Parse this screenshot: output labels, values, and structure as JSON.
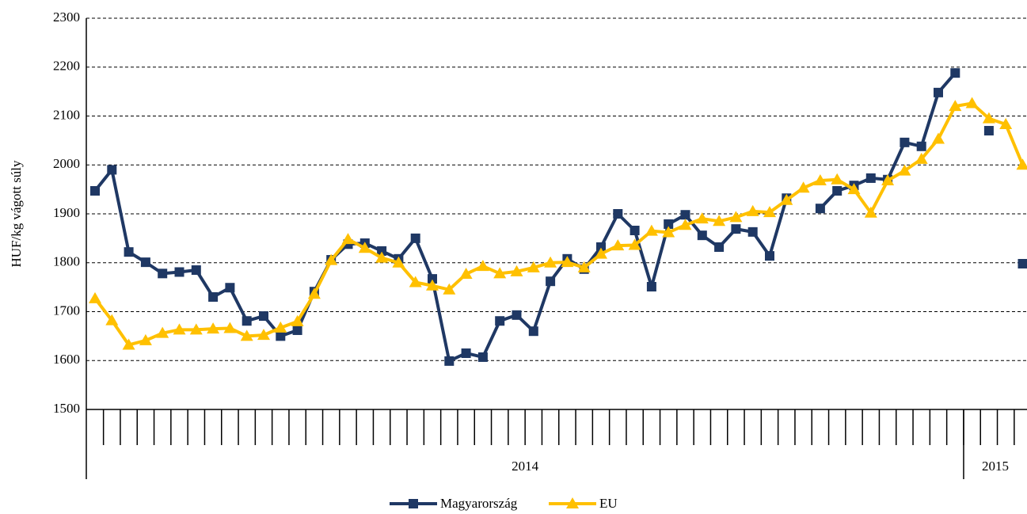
{
  "chart_data": {
    "type": "line",
    "y_label": "HUF/kg vágott súly",
    "categories": [
      null,
      null,
      null,
      null,
      null,
      null,
      null,
      null,
      null,
      null,
      null,
      null,
      null,
      null,
      null,
      null,
      null,
      null,
      null,
      null,
      null,
      null,
      null,
      null,
      null,
      null,
      null,
      null,
      null,
      null,
      null,
      null,
      null,
      null,
      null,
      null,
      null,
      null,
      null,
      null,
      null,
      null,
      null,
      null,
      null,
      null,
      null,
      null,
      null,
      null,
      null,
      null,
      null,
      null,
      null,
      null
    ],
    "category_groups": [
      {
        "label": "2014",
        "count": 52
      },
      {
        "label": "2015",
        "count": 4
      }
    ],
    "series": [
      {
        "name": "Magyarország",
        "color": "#1f3864",
        "marker": "square",
        "values": [
          1947,
          1990,
          1822,
          1801,
          1778,
          1781,
          1785,
          1730,
          1749,
          1681,
          1691,
          1650,
          1662,
          1741,
          1806,
          1838,
          1840,
          1824,
          1808,
          1850,
          1767,
          1599,
          1615,
          1607,
          1681,
          1693,
          1660,
          1762,
          1808,
          1787,
          1832,
          1900,
          1866,
          1751,
          1879,
          1898,
          1856,
          1832,
          1869,
          1863,
          1814,
          1932,
          null,
          1911,
          1947,
          1958,
          1973,
          1970,
          2046,
          2038,
          2148,
          2188,
          null,
          2070,
          null,
          1798
        ]
      },
      {
        "name": "EU",
        "color": "#ffc000",
        "marker": "triangle",
        "values": [
          1727,
          1682,
          1632,
          1641,
          1656,
          1663,
          1663,
          1665,
          1666,
          1650,
          1652,
          1667,
          1680,
          1736,
          1805,
          1848,
          1830,
          1810,
          1800,
          1760,
          1753,
          1745,
          1777,
          1793,
          1778,
          1782,
          1790,
          1800,
          1801,
          1790,
          1818,
          1835,
          1836,
          1865,
          1862,
          1877,
          1890,
          1885,
          1893,
          1905,
          1903,
          1928,
          1953,
          1968,
          1970,
          1950,
          1902,
          1968,
          1988,
          2012,
          2053,
          2120,
          2126,
          2095,
          2083,
          2000
        ]
      }
    ],
    "ylim": [
      1500,
      2300
    ],
    "yticks": [
      1500,
      1600,
      1700,
      1800,
      1900,
      2000,
      2100,
      2200,
      2300
    ],
    "grid": true,
    "legend": "bottom"
  }
}
